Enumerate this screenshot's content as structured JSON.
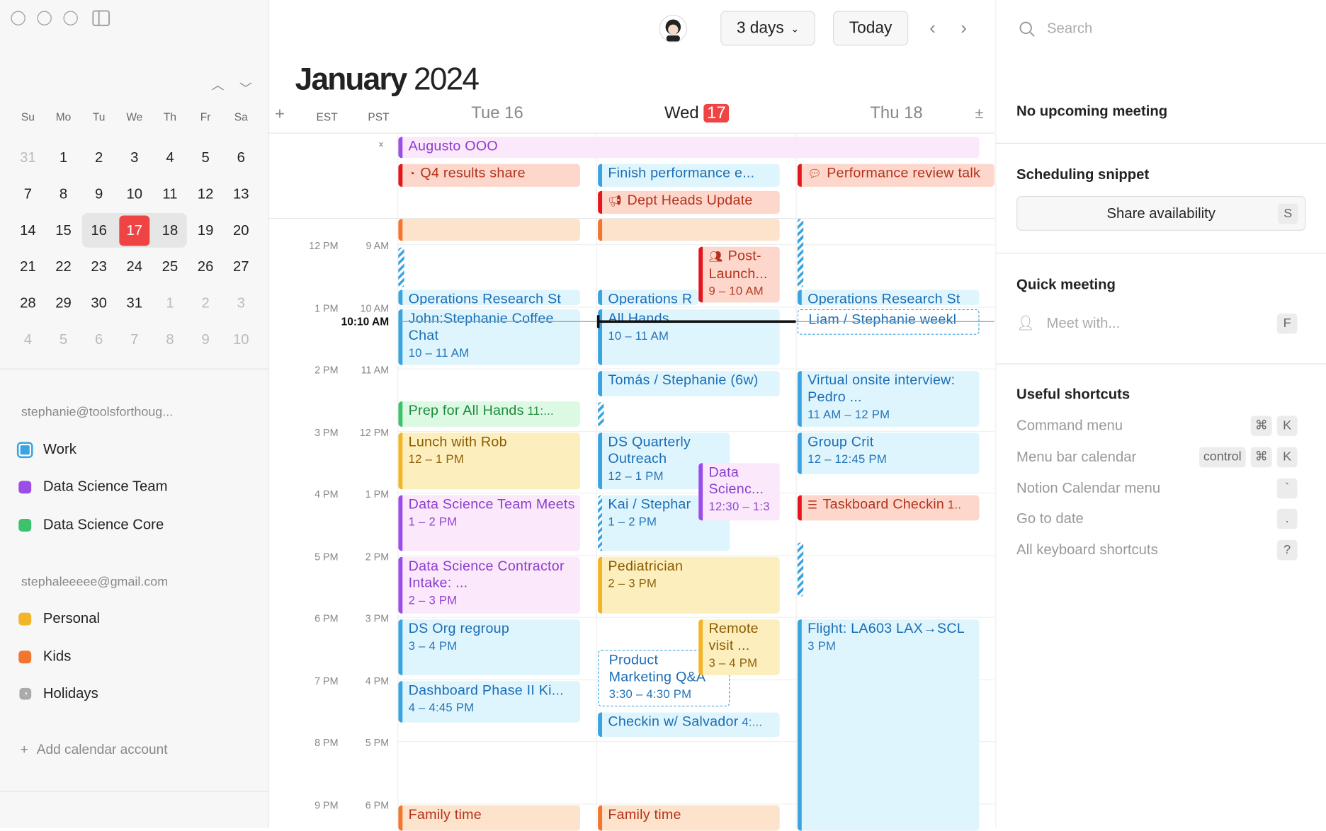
{
  "sidebar": {
    "mini_calendar": {
      "weekdays": [
        "Su",
        "Mo",
        "Tu",
        "We",
        "Th",
        "Fr",
        "Sa"
      ],
      "weeks": [
        [
          "31",
          "1",
          "2",
          "3",
          "4",
          "5",
          "6"
        ],
        [
          "7",
          "8",
          "9",
          "10",
          "11",
          "12",
          "13"
        ],
        [
          "14",
          "15",
          "16",
          "17",
          "18",
          "19",
          "20"
        ],
        [
          "21",
          "22",
          "23",
          "24",
          "25",
          "26",
          "27"
        ],
        [
          "28",
          "29",
          "30",
          "31",
          "1",
          "2",
          "3"
        ],
        [
          "4",
          "5",
          "6",
          "7",
          "8",
          "9",
          "10"
        ]
      ],
      "today": "17",
      "selected_range": [
        "16",
        "17",
        "18"
      ]
    },
    "accounts": [
      {
        "email": "stephanie@toolsforthoug...",
        "calendars": [
          {
            "name": "Work",
            "color": "#3ba3e0",
            "checked": true
          },
          {
            "name": "Data Science Team",
            "color": "#9b4de8"
          },
          {
            "name": "Data Science Core",
            "color": "#3cc26a"
          }
        ]
      },
      {
        "email": "stephaleeeee@gmail.com",
        "calendars": [
          {
            "name": "Personal",
            "color": "#f2b52a"
          },
          {
            "name": "Kids",
            "color": "#f4762e"
          },
          {
            "name": "Holidays",
            "color": "#aaaaaa",
            "icon": "rss-icon"
          }
        ]
      }
    ],
    "add_account": "Add calendar account"
  },
  "toolbar": {
    "view": "3 days",
    "today": "Today"
  },
  "header": {
    "month": "January",
    "year": "2024",
    "tz1": "EST",
    "tz2": "PST",
    "days": [
      {
        "label": "Tue 16"
      },
      {
        "label": "Wed",
        "num": "17"
      },
      {
        "label": "Thu 18"
      }
    ]
  },
  "hours": [
    [
      "12 PM",
      "9 AM"
    ],
    [
      "1 PM",
      "10 AM"
    ],
    [
      "2 PM",
      "11 AM"
    ],
    [
      "3 PM",
      "12 PM"
    ],
    [
      "4 PM",
      "1 PM"
    ],
    [
      "5 PM",
      "2 PM"
    ],
    [
      "6 PM",
      "3 PM"
    ],
    [
      "7 PM",
      "4 PM"
    ],
    [
      "8 PM",
      "5 PM"
    ],
    [
      "9 PM",
      "6 PM"
    ]
  ],
  "now": "10:10 AM",
  "allday": [
    {
      "title": "Augusto OOO",
      "color": "purple"
    }
  ],
  "events": [
    {
      "title": "Q4 results share",
      "color": "red",
      "icon": "chart-icon"
    },
    {
      "title": "Finish performance e...",
      "color": "blue"
    },
    {
      "title": "Performance review talk",
      "color": "red",
      "icon": "chat-icon"
    },
    {
      "title": "Dept Heads Update",
      "color": "red",
      "icon": "megaphone-icon"
    },
    {
      "title": "",
      "color": "orange"
    },
    {
      "title": "Operations Research St",
      "color": "blue"
    },
    {
      "title": "John:Stephanie Coffee Chat",
      "time": "10 – 11 AM",
      "color": "blue"
    },
    {
      "title": "Prep for All Hands",
      "time": "11:...",
      "color": "green",
      "inline": true
    },
    {
      "title": "Lunch with Rob",
      "time": "12 – 1 PM",
      "color": "yellow"
    },
    {
      "title": "Data Science Team Meets",
      "time": "1 – 2 PM",
      "color": "purple"
    },
    {
      "title": "Data Science Contractor Intake: ...",
      "time": "2 – 3 PM",
      "color": "purple"
    },
    {
      "title": "DS Org regroup",
      "time": "3 – 4 PM",
      "color": "blue"
    },
    {
      "title": "Dashboard Phase II Ki...",
      "time": "4 – 4:45 PM",
      "color": "blue"
    },
    {
      "title": "Family time",
      "color": "orange"
    },
    {
      "title": "",
      "color": "orange"
    },
    {
      "title": "Operations R",
      "color": "blue"
    },
    {
      "title": "Post-Launch...",
      "time": "9 – 10 AM",
      "color": "red",
      "icon": "people-icon"
    },
    {
      "title": "All Hands",
      "time": "10 – 11 AM",
      "color": "blue"
    },
    {
      "title": "Tomás / Stephanie (6w)",
      "color": "blue"
    },
    {
      "title": "DS Quarterly Outreach",
      "time": "12 – 1 PM",
      "color": "blue"
    },
    {
      "title": "Kai / Stephar",
      "time": "1 – 2 PM",
      "color": "blue",
      "striped": true
    },
    {
      "title": "Data Scienc...",
      "time": "12:30 – 1:3",
      "color": "purple"
    },
    {
      "title": "Pediatrician",
      "time": "2 – 3 PM",
      "color": "yellow"
    },
    {
      "title": "Product Marketing Q&A",
      "time": "3:30 – 4:30 PM",
      "color": "blue",
      "dashed": true
    },
    {
      "title": "Remote visit ...",
      "time": "3 – 4 PM",
      "color": "yellow"
    },
    {
      "title": "Checkin w/ Salvador",
      "time": "4:...",
      "color": "blue",
      "inline": true
    },
    {
      "title": "Family time",
      "color": "orange"
    },
    {
      "title": "Operations Research St",
      "color": "blue"
    },
    {
      "title": "Liam / Stephanie weekl",
      "color": "blue",
      "dashed": true
    },
    {
      "title": "Virtual onsite interview: Pedro ...",
      "time": "11 AM – 12 PM",
      "color": "blue"
    },
    {
      "title": "Group Crit",
      "time": "12 – 12:45 PM",
      "color": "blue"
    },
    {
      "title": "Taskboard Checkin",
      "time": "1..",
      "color": "red",
      "icon": "checklist-icon",
      "inline": true
    },
    {
      "title": "Flight: LA603 LAX→SCL",
      "time": "3 PM",
      "color": "blue"
    }
  ],
  "right": {
    "search_placeholder": "Search",
    "upcoming": "No upcoming meeting",
    "snippet_title": "Scheduling snippet",
    "share": "Share availability",
    "share_key": "S",
    "quick_title": "Quick meeting",
    "meet_placeholder": "Meet with...",
    "meet_key": "F",
    "shortcuts_title": "Useful shortcuts",
    "shortcuts": [
      {
        "label": "Command menu",
        "keys": [
          "⌘",
          "K"
        ]
      },
      {
        "label": "Menu bar calendar",
        "keys": [
          "control",
          "⌘",
          "K"
        ]
      },
      {
        "label": "Notion Calendar menu",
        "keys": [
          "`"
        ]
      },
      {
        "label": "Go to date",
        "keys": [
          "."
        ]
      },
      {
        "label": "All keyboard shortcuts",
        "keys": [
          "?"
        ]
      }
    ]
  }
}
